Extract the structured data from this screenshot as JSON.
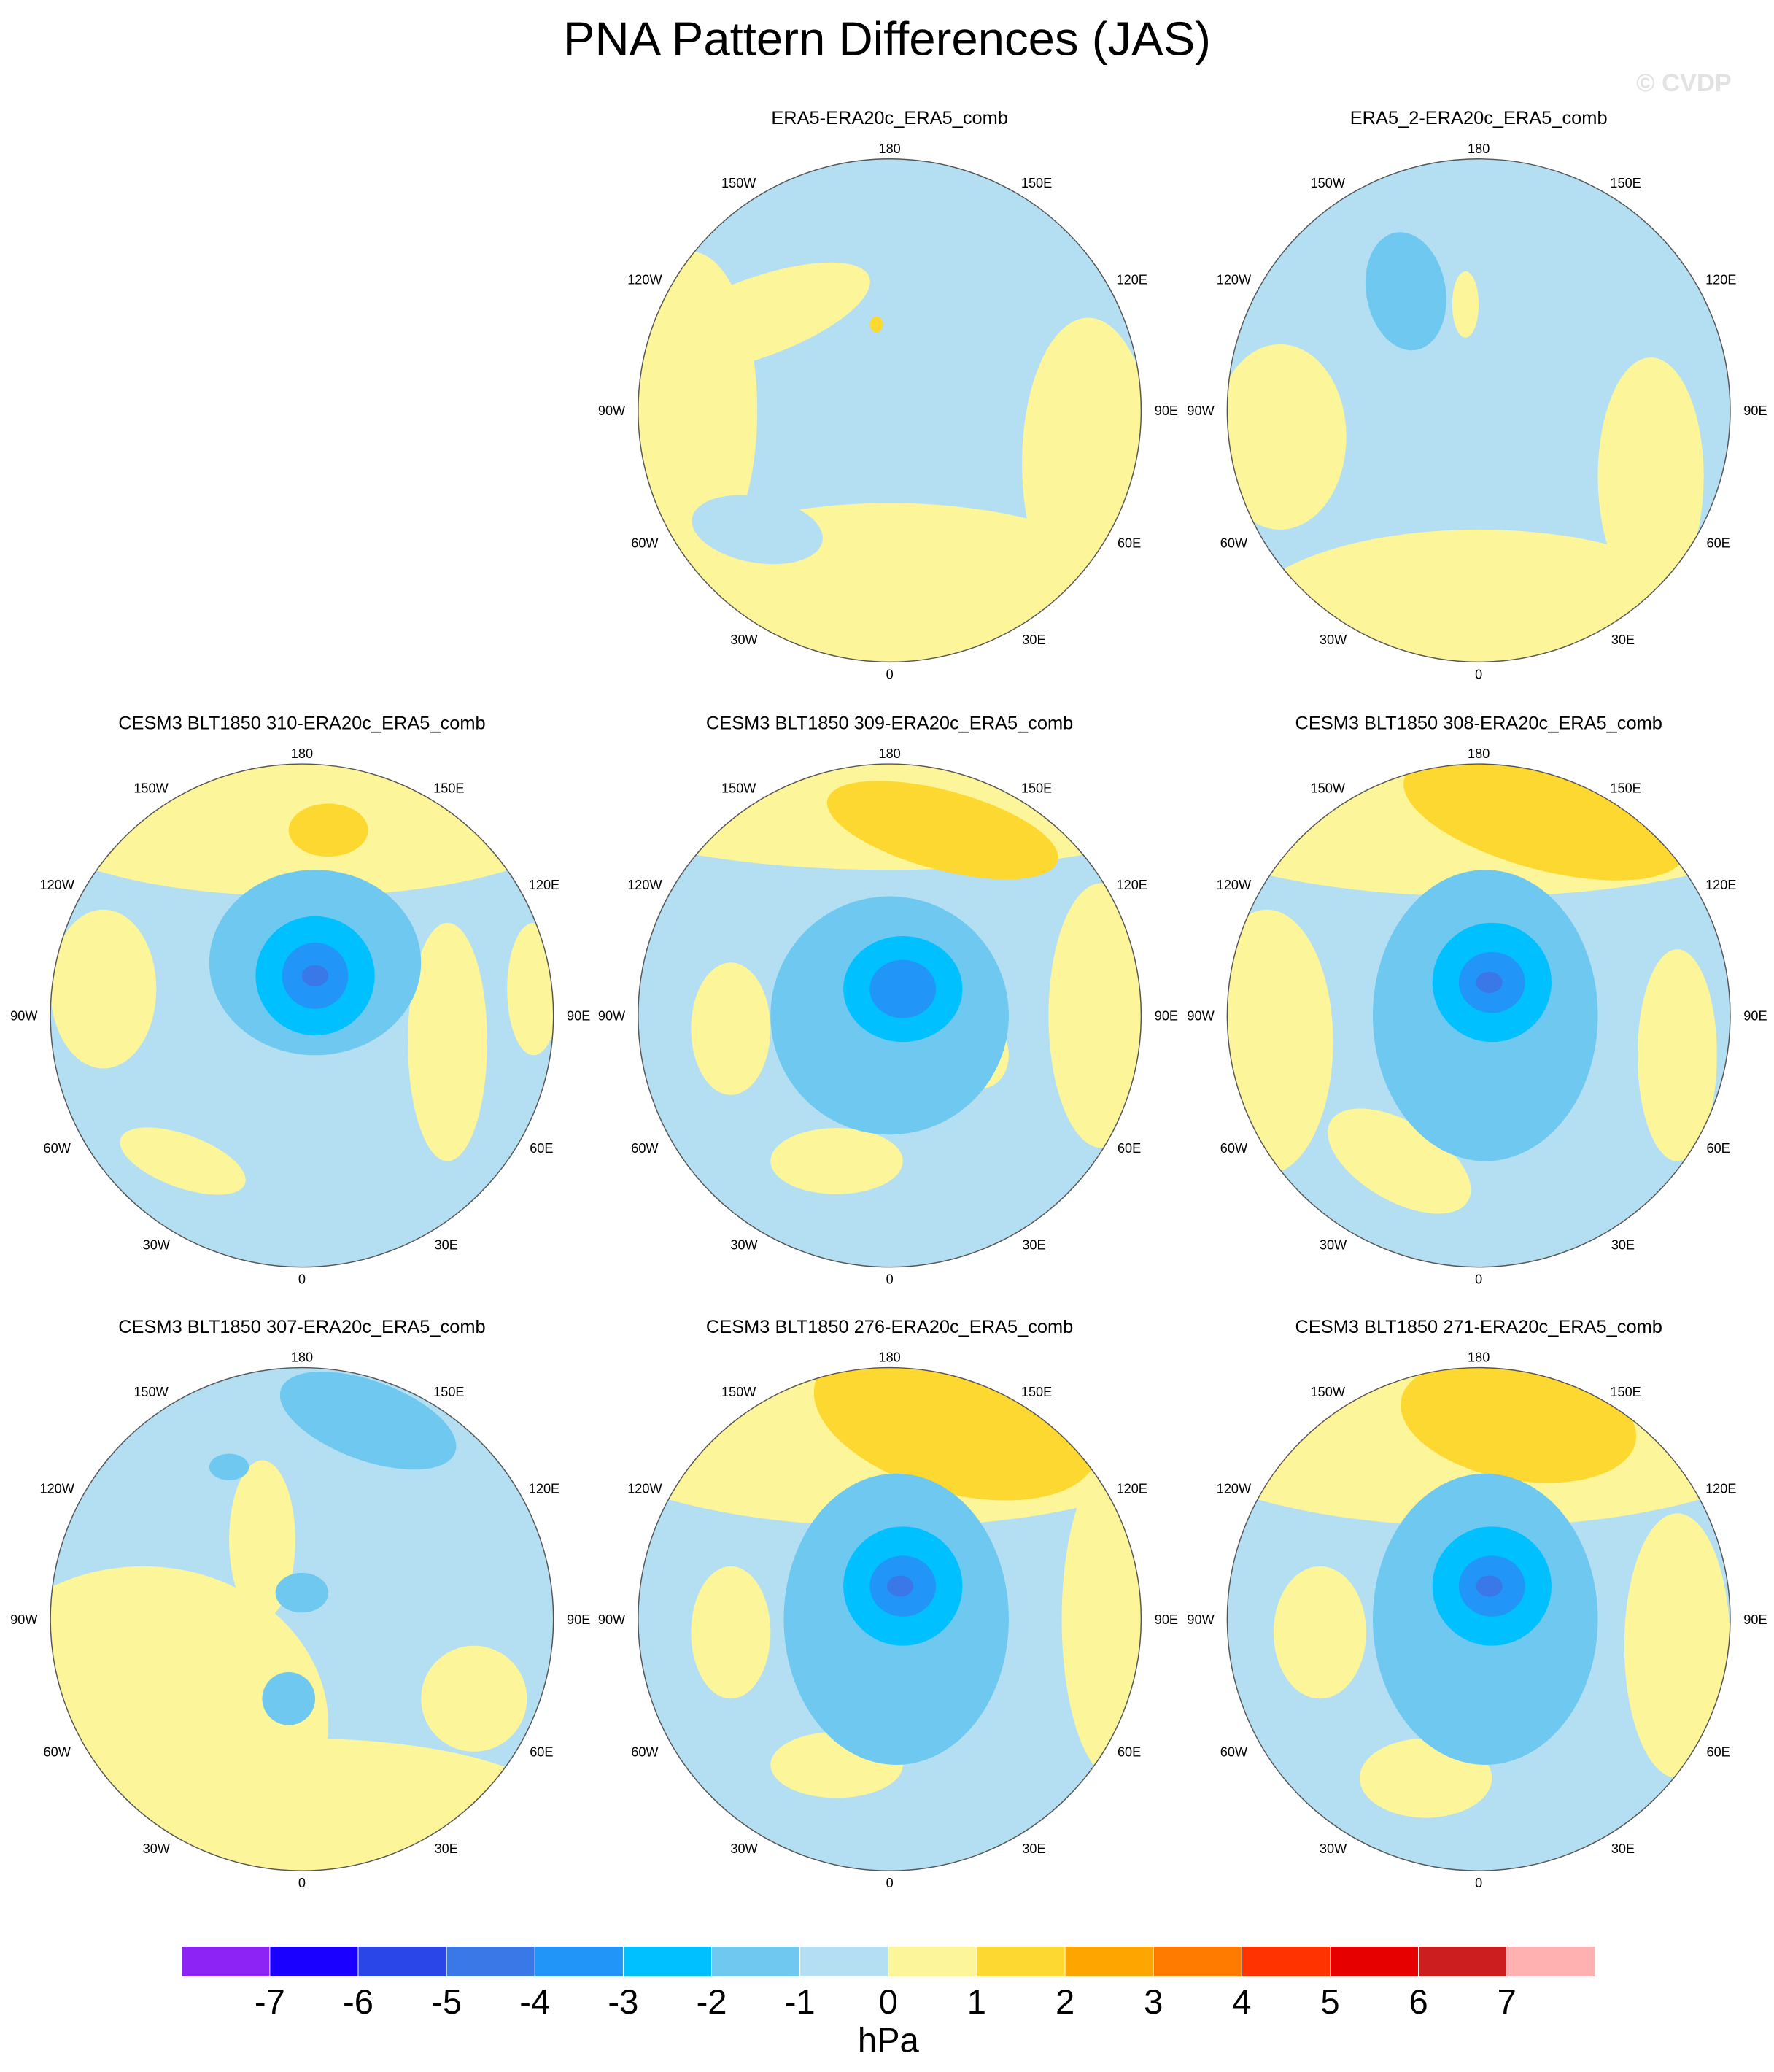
{
  "title": "PNA Pattern Differences (JAS)",
  "watermark": "© CVDP",
  "lon_labels": [
    "180",
    "150E",
    "120E",
    "90E",
    "60E",
    "30E",
    "0",
    "30W",
    "60W",
    "90W",
    "120W",
    "150W"
  ],
  "panels": [
    {
      "title": "ERA5-ERA20c_ERA5_comb"
    },
    {
      "title": "ERA5_2-ERA20c_ERA5_comb"
    },
    {
      "title": "CESM3 BLT1850 310-ERA20c_ERA5_comb"
    },
    {
      "title": "CESM3 BLT1850 309-ERA20c_ERA5_comb"
    },
    {
      "title": "CESM3 BLT1850 308-ERA20c_ERA5_comb"
    },
    {
      "title": "CESM3 BLT1850 307-ERA20c_ERA5_comb"
    },
    {
      "title": "CESM3 BLT1850 276-ERA20c_ERA5_comb"
    },
    {
      "title": "CESM3 BLT1850 271-ERA20c_ERA5_comb"
    }
  ],
  "colorbar": {
    "colors": [
      "#8d24f5",
      "#1a00ff",
      "#2a45e8",
      "#3a78e8",
      "#2196f8",
      "#00c0ff",
      "#6ec8f0",
      "#b4dff2",
      "#fdf59a",
      "#fdd830",
      "#ffa500",
      "#ff7b00",
      "#ff3300",
      "#e60000",
      "#cc1e1e",
      "#ffb0b0"
    ],
    "ticks": [
      -7,
      -6,
      -5,
      -4,
      -3,
      -2,
      -1,
      0,
      1,
      2,
      3,
      4,
      5,
      6,
      7
    ],
    "label": "hPa"
  }
}
